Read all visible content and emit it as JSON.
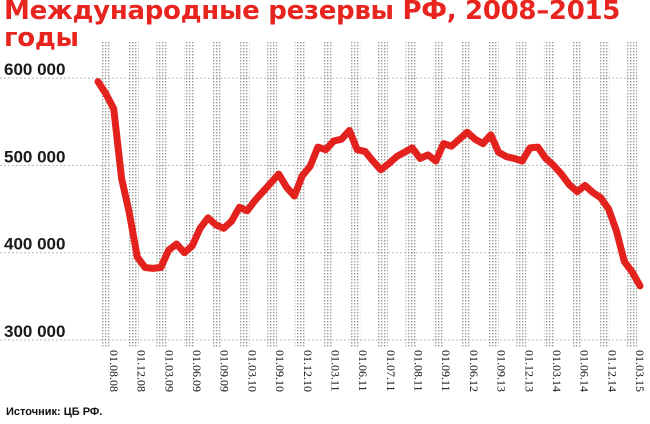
{
  "chart_data": {
    "type": "line",
    "title": "Международные резервы РФ, 2008–2015 годы",
    "source": "Источник: ЦБ РФ.",
    "xlabel": "",
    "ylabel": "",
    "ylim": [
      300000,
      615000
    ],
    "yticks": [
      300000,
      400000,
      500000,
      600000
    ],
    "ytick_labels": [
      "300 000",
      "400 000",
      "500 000",
      "600 000"
    ],
    "xtick_labels": [
      "01.08.08",
      "01.12.08",
      "01.03.09",
      "01.06.09",
      "01.09.09",
      "01.03.10",
      "01.09.10",
      "01.12.10",
      "01.03.11",
      "01.06.11",
      "01.07.11",
      "01.08.11",
      "01.09.11",
      "01.06.12",
      "01.09.13",
      "01.12.13",
      "01.03.14",
      "01.06.14",
      "01.12.14",
      "01.03.15"
    ],
    "grid": true,
    "line_color": "#e3221e",
    "values": [
      596000,
      582000,
      565000,
      485000,
      445000,
      395000,
      383000,
      382000,
      383000,
      403000,
      410000,
      400000,
      408000,
      428000,
      440000,
      432000,
      428000,
      436000,
      452000,
      448000,
      460000,
      470000,
      480000,
      490000,
      475000,
      465000,
      488000,
      499000,
      521000,
      518000,
      528000,
      530000,
      540000,
      518000,
      516000,
      505000,
      495000,
      502000,
      510000,
      515000,
      520000,
      508000,
      512000,
      505000,
      525000,
      522000,
      530000,
      538000,
      530000,
      525000,
      535000,
      515000,
      510000,
      508000,
      505000,
      520000,
      521000,
      508000,
      500000,
      490000,
      478000,
      470000,
      477000,
      469000,
      463000,
      450000,
      425000,
      390000,
      378000,
      362000
    ]
  }
}
